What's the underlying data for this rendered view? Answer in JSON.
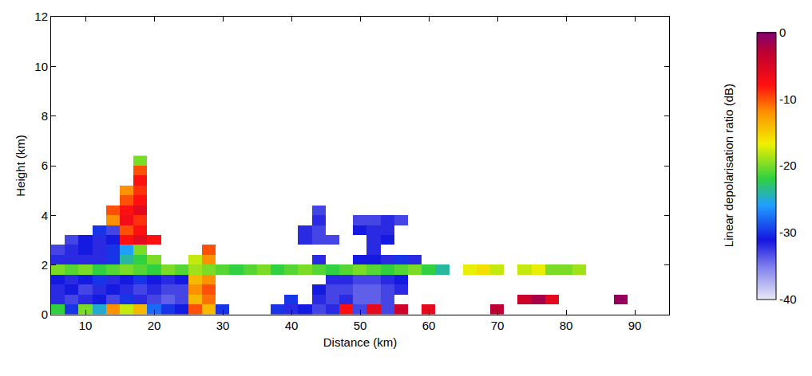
{
  "chart_data": {
    "type": "heatmap",
    "xlabel": "Distance (km)",
    "ylabel": "Height (km)",
    "colorbar_title": "Linear depolarisation ratio (dB)",
    "xlim": [
      5,
      95
    ],
    "xticks": [
      10,
      20,
      30,
      40,
      50,
      60,
      70,
      80,
      90
    ],
    "ylim": [
      0,
      12
    ],
    "yticks": [
      0,
      2,
      4,
      6,
      8,
      10,
      12
    ],
    "zlim": [
      -40,
      0
    ],
    "zticks": [
      -40,
      -30,
      -20,
      -10,
      0
    ],
    "grid": false,
    "x": [
      6,
      8,
      10,
      12,
      14,
      16,
      18,
      20,
      22,
      24,
      26,
      28,
      30,
      32,
      34,
      36,
      38,
      40,
      42,
      44,
      46,
      48,
      50,
      52,
      54,
      56,
      58,
      60,
      62,
      64,
      66,
      68,
      70,
      72,
      74,
      76,
      78,
      80,
      82,
      84,
      86,
      88
    ],
    "y": [
      0.2,
      0.6,
      1.0,
      1.4,
      1.8,
      2.2,
      2.6,
      3.0,
      3.4,
      3.8,
      4.2,
      4.6,
      5.0,
      5.4,
      5.8,
      6.2
    ],
    "z": [
      [
        -22,
        -30,
        -20,
        -25,
        -12,
        -18,
        -14,
        -28,
        -30,
        -31,
        -10,
        -14,
        -30,
        null,
        null,
        null,
        -30,
        -32,
        -31,
        -33,
        -32,
        -8,
        -33,
        -6,
        -33,
        -4,
        null,
        -6,
        null,
        null,
        null,
        null,
        -3,
        null,
        null,
        null,
        null,
        null,
        null,
        null,
        null,
        null
      ],
      [
        -32,
        -33,
        -32,
        -31,
        -33,
        -30,
        -32,
        -33,
        -34,
        -33,
        -14,
        -11,
        null,
        null,
        null,
        null,
        null,
        -30,
        null,
        -32,
        -33,
        -32,
        -34,
        -34,
        -33,
        null,
        null,
        null,
        null,
        null,
        null,
        null,
        null,
        null,
        -4,
        -2,
        -6,
        null,
        null,
        null,
        null,
        -1
      ],
      [
        -32,
        -31,
        -33,
        -32,
        -31,
        -32,
        -33,
        -32,
        -33,
        -33,
        -12,
        -10,
        null,
        null,
        null,
        null,
        null,
        null,
        null,
        -31,
        -33,
        -33,
        -34,
        -34,
        -33,
        -32,
        null,
        null,
        null,
        null,
        null,
        null,
        null,
        null,
        null,
        null,
        null,
        null,
        null,
        null,
        null,
        null
      ],
      [
        -31,
        -32,
        -31,
        -30,
        -32,
        -31,
        -30,
        -31,
        -32,
        -31,
        -14,
        -12,
        null,
        null,
        null,
        null,
        null,
        null,
        null,
        null,
        -32,
        -32,
        -33,
        -33,
        -32,
        -31,
        null,
        null,
        null,
        null,
        null,
        null,
        null,
        null,
        null,
        null,
        null,
        null,
        null,
        null,
        null,
        null
      ],
      [
        -20,
        -21,
        -20,
        -22,
        -21,
        -20,
        -21,
        -22,
        -20,
        -21,
        -19,
        -20,
        -21,
        -22,
        -21,
        -20,
        -22,
        -21,
        -20,
        -21,
        -22,
        -21,
        -20,
        -21,
        -22,
        -21,
        -20,
        -22,
        -24,
        null,
        -17,
        -16,
        -18,
        null,
        -18,
        -17,
        -20,
        -20,
        -19,
        null,
        null,
        null
      ],
      [
        -32,
        -32,
        -32,
        -32,
        -30,
        -24,
        -22,
        -20,
        null,
        null,
        -18,
        -12,
        null,
        null,
        null,
        null,
        null,
        null,
        null,
        -32,
        null,
        null,
        -31,
        -31,
        -32,
        -30,
        -32,
        null,
        null,
        null,
        null,
        null,
        null,
        null,
        null,
        null,
        null,
        null,
        null,
        null,
        null,
        null
      ],
      [
        -33,
        -32,
        -31,
        -32,
        -30,
        -26,
        -20,
        null,
        null,
        null,
        null,
        -10,
        null,
        null,
        null,
        null,
        null,
        null,
        null,
        null,
        null,
        null,
        null,
        -32,
        null,
        null,
        null,
        null,
        null,
        null,
        null,
        null,
        null,
        null,
        null,
        null,
        null,
        null,
        null,
        null,
        null,
        null
      ],
      [
        null,
        -33,
        -31,
        -32,
        -31,
        -8,
        -6,
        -8,
        null,
        null,
        null,
        null,
        null,
        null,
        null,
        null,
        null,
        null,
        -32,
        -33,
        -33,
        null,
        null,
        -32,
        -31,
        null,
        null,
        null,
        null,
        null,
        null,
        null,
        null,
        null,
        null,
        null,
        null,
        null,
        null,
        null,
        null,
        null
      ],
      [
        null,
        null,
        null,
        -30,
        -33,
        -10,
        -8,
        null,
        null,
        null,
        null,
        null,
        null,
        null,
        null,
        null,
        null,
        null,
        -32,
        -33,
        null,
        null,
        -31,
        -32,
        -32,
        null,
        null,
        null,
        null,
        null,
        null,
        null,
        null,
        null,
        null,
        null,
        null,
        null,
        null,
        null,
        null,
        null
      ],
      [
        null,
        null,
        null,
        null,
        -12,
        -7,
        -9,
        null,
        null,
        null,
        null,
        null,
        null,
        null,
        null,
        null,
        null,
        null,
        null,
        -32,
        null,
        null,
        -33,
        -33,
        -32,
        -33,
        null,
        null,
        null,
        null,
        null,
        null,
        null,
        null,
        null,
        null,
        null,
        null,
        null,
        null,
        null,
        null
      ],
      [
        null,
        null,
        null,
        null,
        -10,
        -8,
        -6,
        null,
        null,
        null,
        null,
        null,
        null,
        null,
        null,
        null,
        null,
        null,
        null,
        -33,
        null,
        null,
        null,
        null,
        null,
        null,
        null,
        null,
        null,
        null,
        null,
        null,
        null,
        null,
        null,
        null,
        null,
        null,
        null,
        null,
        null,
        null
      ],
      [
        null,
        null,
        null,
        null,
        null,
        -10,
        -8,
        null,
        null,
        null,
        null,
        null,
        null,
        null,
        null,
        null,
        null,
        null,
        null,
        null,
        null,
        null,
        null,
        null,
        null,
        null,
        null,
        null,
        null,
        null,
        null,
        null,
        null,
        null,
        null,
        null,
        null,
        null,
        null,
        null,
        null,
        null
      ],
      [
        null,
        null,
        null,
        null,
        null,
        -12,
        -9,
        null,
        null,
        null,
        null,
        null,
        null,
        null,
        null,
        null,
        null,
        null,
        null,
        null,
        null,
        null,
        null,
        null,
        null,
        null,
        null,
        null,
        null,
        null,
        null,
        null,
        null,
        null,
        null,
        null,
        null,
        null,
        null,
        null,
        null,
        null
      ],
      [
        null,
        null,
        null,
        null,
        null,
        null,
        -8,
        null,
        null,
        null,
        null,
        null,
        null,
        null,
        null,
        null,
        null,
        null,
        null,
        null,
        null,
        null,
        null,
        null,
        null,
        null,
        null,
        null,
        null,
        null,
        null,
        null,
        null,
        null,
        null,
        null,
        null,
        null,
        null,
        null,
        null,
        null
      ],
      [
        null,
        null,
        null,
        null,
        null,
        null,
        -10,
        null,
        null,
        null,
        null,
        null,
        null,
        null,
        null,
        null,
        null,
        null,
        null,
        null,
        null,
        null,
        null,
        null,
        null,
        null,
        null,
        null,
        null,
        null,
        null,
        null,
        null,
        null,
        null,
        null,
        null,
        null,
        null,
        null,
        null,
        null
      ],
      [
        null,
        null,
        null,
        null,
        null,
        null,
        -20,
        null,
        null,
        null,
        null,
        null,
        null,
        null,
        null,
        null,
        null,
        null,
        null,
        null,
        null,
        null,
        null,
        null,
        null,
        null,
        null,
        null,
        null,
        null,
        null,
        null,
        null,
        null,
        null,
        null,
        null,
        null,
        null,
        null,
        null,
        null
      ]
    ]
  }
}
